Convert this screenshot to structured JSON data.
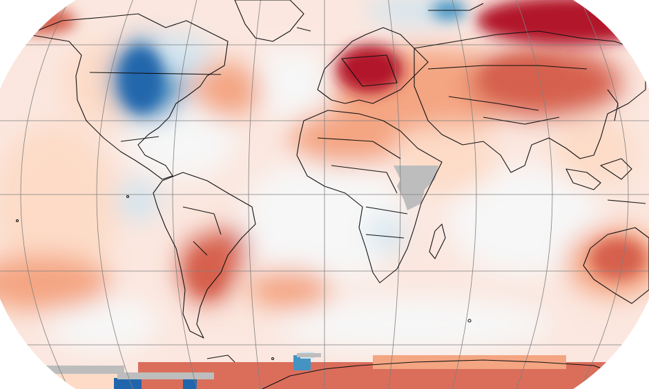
{
  "map": {
    "projection": "robinson-like",
    "graticule": {
      "lat_step_deg": 15,
      "lon_step_deg": 30,
      "color": "#7f7f7f"
    },
    "palette": {
      "ocean_base": "#fbe7df",
      "strong_warm": "#b2182b",
      "warm": "#d6604d",
      "mild_warm": "#f4a582",
      "light_warm": "#fddbc7",
      "neutral": "#f7f7f7",
      "light_cool": "#d1e5f0",
      "cool": "#4393c3",
      "strong_cool": "#2166ac",
      "no_data": "#bdbdbd",
      "coastline": "#111111"
    },
    "regions": [
      {
        "name": "north-america-cold-anomaly",
        "tone": "strong_cool"
      },
      {
        "name": "greenland-cool-patch",
        "tone": "cool"
      },
      {
        "name": "central-europe-heat-anomaly",
        "tone": "strong_warm"
      },
      {
        "name": "northern-russia-heat-anomaly",
        "tone": "strong_warm"
      },
      {
        "name": "central-asia-warm-anomaly",
        "tone": "warm"
      },
      {
        "name": "southern-south-america-warm-anomaly",
        "tone": "warm"
      },
      {
        "name": "australia-warm-anomaly",
        "tone": "mild_warm"
      },
      {
        "name": "east-africa-missing-data",
        "tone": "no_data"
      },
      {
        "name": "antarctica-warm-anomaly",
        "tone": "warm"
      },
      {
        "name": "antarctica-cool-patches",
        "tone": "strong_cool"
      }
    ]
  }
}
